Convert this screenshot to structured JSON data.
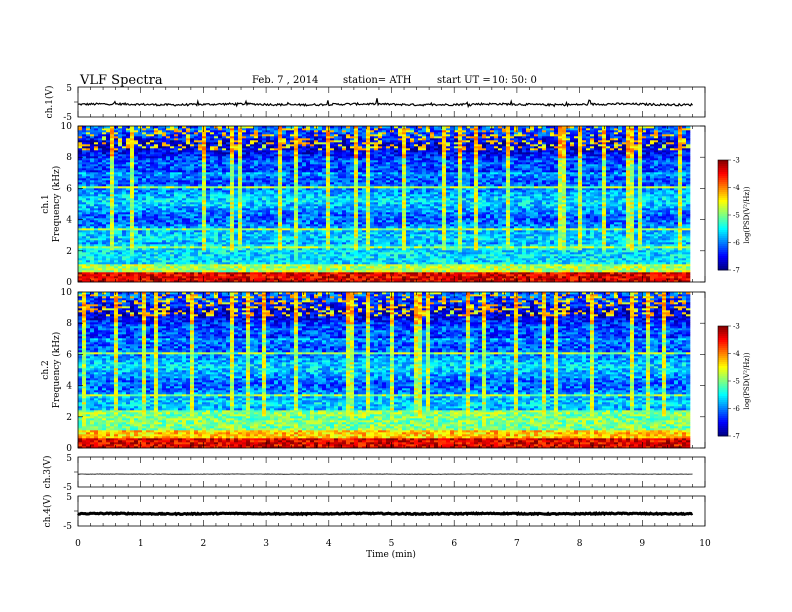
{
  "header": {
    "title": "VLF  Spectra",
    "date": "Feb. 7  , 2014",
    "station": "station= ATH",
    "start_label": "start  UT  =",
    "start_time": "10: 50: 0"
  },
  "chart_data": [
    {
      "type": "line",
      "panel": "ch1-waveform",
      "ylabel": "ch.1(V)",
      "ylim": [
        -5,
        5
      ],
      "yticks": [
        "5",
        "-5"
      ],
      "xlim": [
        0,
        10
      ],
      "level": -0.8,
      "noise": 0.35,
      "color": "#000000"
    },
    {
      "type": "heatmap",
      "panel": "ch1-spectrogram",
      "ylabel_line1": "ch.1",
      "ylabel_line2": "Frequency  (kHz)",
      "ylim": [
        0,
        10
      ],
      "yticks": [
        "10",
        "8",
        "6",
        "4",
        "2",
        "0"
      ],
      "xlim": [
        0,
        10
      ],
      "data_end_min": 9.8,
      "zlim": [
        -7,
        -3
      ],
      "colorbar_label": "log(PSD(V²/Hz))",
      "colorbar_ticks": [
        "-3",
        "-4",
        "-5",
        "-6",
        "-7"
      ]
    },
    {
      "type": "heatmap",
      "panel": "ch2-spectrogram",
      "ylabel_line1": "ch.2",
      "ylabel_line2": "Frequency  (kHz)",
      "ylim": [
        0,
        10
      ],
      "yticks": [
        "10",
        "8",
        "6",
        "4",
        "2",
        "0"
      ],
      "xlim": [
        0,
        10
      ],
      "data_end_min": 9.8,
      "zlim": [
        -7,
        -3
      ],
      "colorbar_label": "log(PSD(V²/Hz))",
      "colorbar_ticks": [
        "-3",
        "-4",
        "-5",
        "-6",
        "-7"
      ]
    },
    {
      "type": "line",
      "panel": "ch3-waveform",
      "ylabel": "ch.3(V)",
      "ylim": [
        -5,
        5
      ],
      "yticks": [
        "5",
        "-5"
      ],
      "xlim": [
        0,
        10
      ],
      "level": -0.7,
      "noise": 0.05,
      "color": "#000000"
    },
    {
      "type": "line",
      "panel": "ch4-waveform",
      "ylabel": "ch.4(V)",
      "ylim": [
        -5,
        5
      ],
      "yticks": [
        "5",
        "-5"
      ],
      "xlim": [
        0,
        10
      ],
      "level": -0.9,
      "noise": 0.18,
      "color": "#000000"
    }
  ],
  "x_axis": {
    "label": "Time  (min)",
    "ticks": [
      "0",
      "1",
      "2",
      "3",
      "4",
      "5",
      "6",
      "7",
      "8",
      "9",
      "10"
    ],
    "range": [
      0,
      10
    ]
  }
}
